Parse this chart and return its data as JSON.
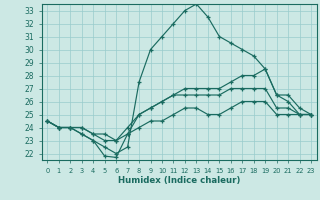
{
  "xlabel": "Humidex (Indice chaleur)",
  "background_color": "#cce8e4",
  "line_color": "#1a6b60",
  "grid_color": "#99cccc",
  "xlim": [
    -0.5,
    23.5
  ],
  "ylim": [
    21.5,
    33.5
  ],
  "yticks": [
    22,
    23,
    24,
    25,
    26,
    27,
    28,
    29,
    30,
    31,
    32,
    33
  ],
  "xticks": [
    0,
    1,
    2,
    3,
    4,
    5,
    6,
    7,
    8,
    9,
    10,
    11,
    12,
    13,
    14,
    15,
    16,
    17,
    18,
    19,
    20,
    21,
    22,
    23
  ],
  "series": {
    "line1": [
      24.5,
      24.0,
      24.0,
      23.5,
      23.0,
      22.5,
      22.0,
      22.5,
      27.5,
      30.0,
      31.0,
      32.0,
      33.0,
      33.5,
      32.5,
      31.0,
      30.5,
      30.0,
      29.5,
      28.5,
      26.5,
      26.0,
      25.0,
      25.0
    ],
    "line2": [
      24.5,
      24.0,
      24.0,
      24.0,
      23.5,
      23.0,
      23.0,
      23.5,
      25.0,
      25.5,
      26.0,
      26.5,
      27.0,
      27.0,
      27.0,
      27.0,
      27.5,
      28.0,
      28.0,
      28.5,
      26.5,
      26.5,
      25.5,
      25.0
    ],
    "line3": [
      24.5,
      24.0,
      24.0,
      24.0,
      23.5,
      23.5,
      23.0,
      24.0,
      25.0,
      25.5,
      26.0,
      26.5,
      26.5,
      26.5,
      26.5,
      26.5,
      27.0,
      27.0,
      27.0,
      27.0,
      25.5,
      25.5,
      25.0,
      25.0
    ],
    "line4": [
      24.5,
      24.0,
      24.0,
      23.5,
      23.0,
      21.8,
      21.7,
      23.5,
      24.0,
      24.5,
      24.5,
      25.0,
      25.5,
      25.5,
      25.0,
      25.0,
      25.5,
      26.0,
      26.0,
      26.0,
      25.0,
      25.0,
      25.0,
      25.0
    ]
  }
}
